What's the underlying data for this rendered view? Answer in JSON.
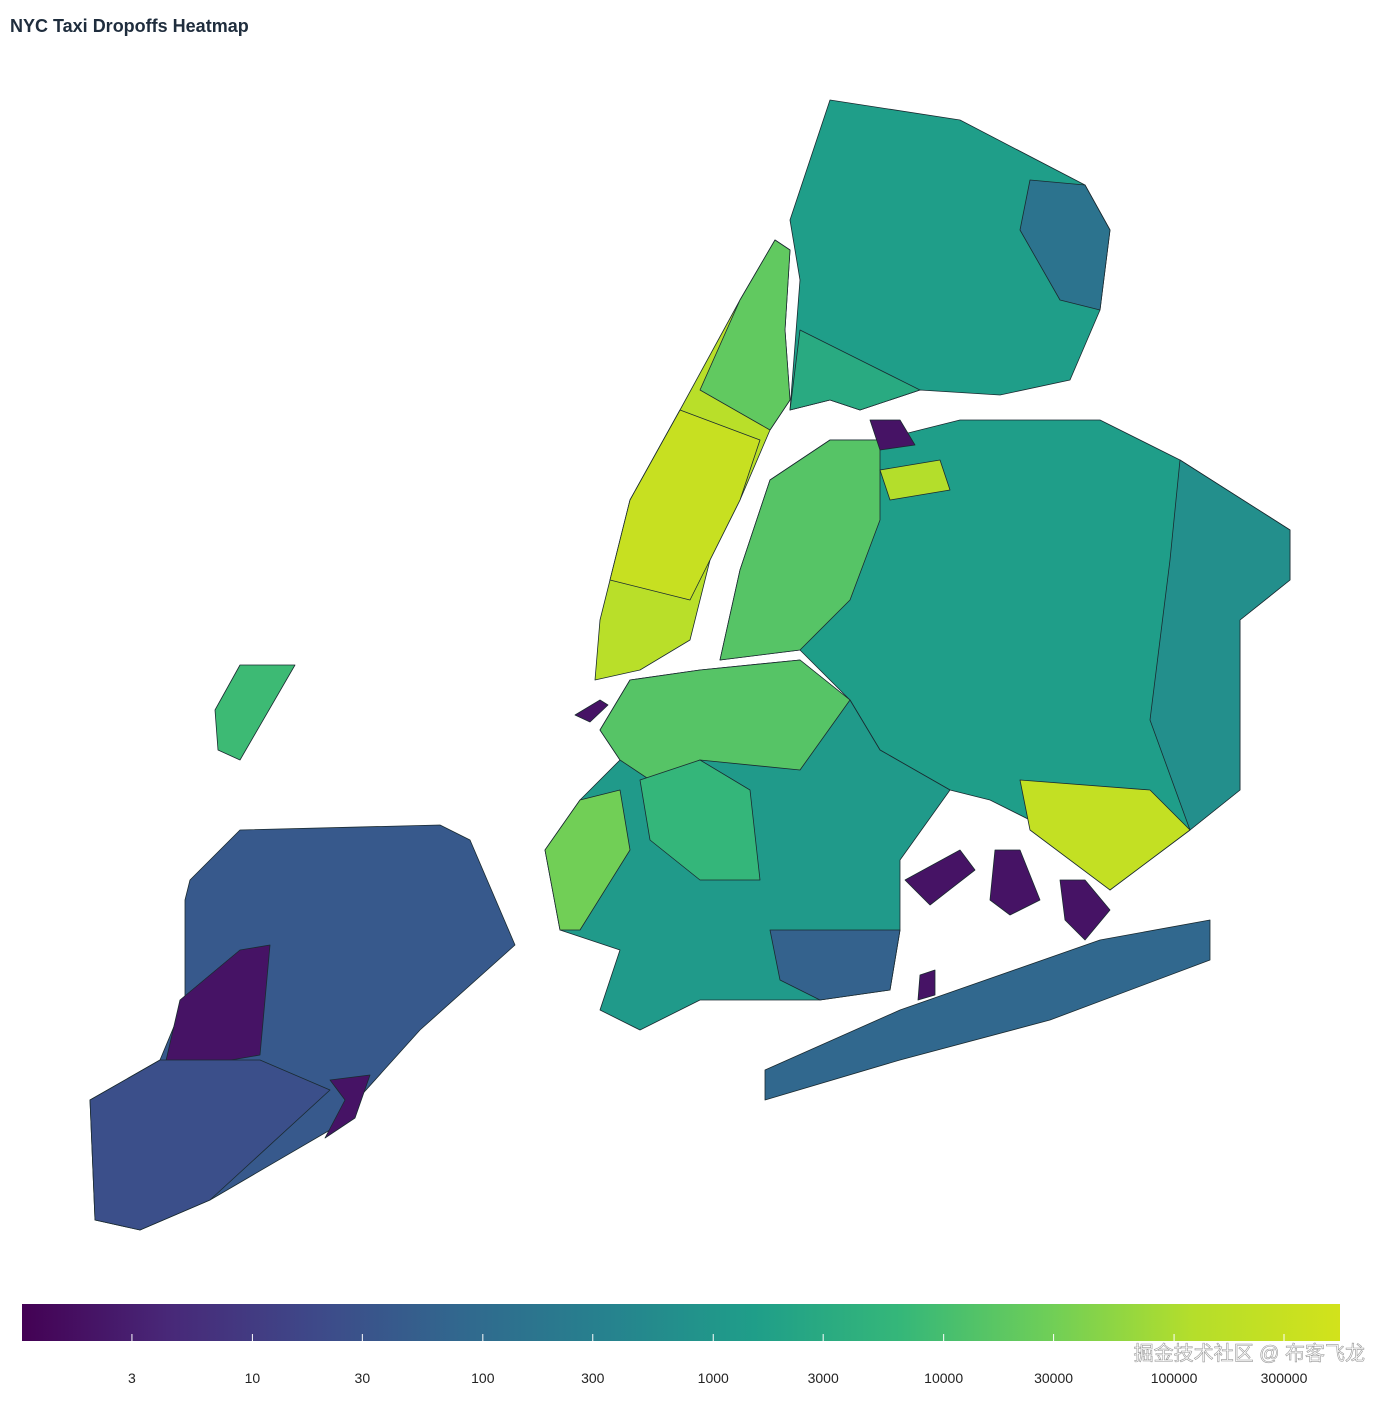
{
  "chart_data": {
    "type": "choropleth",
    "title": "NYC Taxi Dropoffs Heatmap",
    "values": [
      40,
      2,
      25,
      2,
      8000,
      150000,
      300000,
      20000,
      1500,
      150,
      3000,
      1500,
      15000,
      120000,
      2,
      250000,
      700,
      1200,
      15000,
      6000,
      30000,
      60,
      80,
      2,
      2,
      2,
      2,
      2
    ],
    "colorscale": "viridis",
    "log_scale": true,
    "colorbar_lim": [
      1,
      525000
    ],
    "colorbar_ticks": [
      3,
      10,
      30,
      100,
      300,
      1000,
      3000,
      10000,
      30000,
      100000,
      300000
    ]
  },
  "watermark": "掘金技术社区 @ 布客飞龙"
}
